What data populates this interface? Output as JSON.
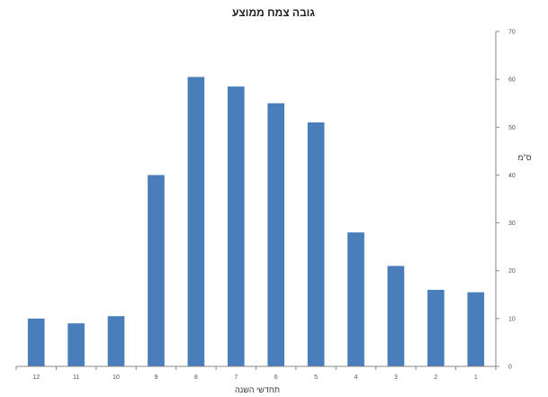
{
  "chart_data": {
    "type": "bar",
    "title": "גובה צמח ממוצע",
    "xlabel": "תחדשי השנה",
    "ylabel": "ס\"מ",
    "categories": [
      "12",
      "11",
      "10",
      "9",
      "8",
      "7",
      "6",
      "5",
      "4",
      "3",
      "2",
      "1"
    ],
    "values": [
      10,
      9,
      10.5,
      40,
      60.5,
      58.5,
      55,
      51,
      28,
      21,
      16,
      15.5
    ],
    "ylim": [
      0,
      70
    ],
    "yticks": [
      "0",
      "10",
      "20",
      "30",
      "40",
      "50",
      "60",
      "70"
    ],
    "y_axis_position": "right",
    "grid": false,
    "legend": "none",
    "colors": {
      "bar": "#4a7ebb",
      "axis": "#888888"
    }
  }
}
